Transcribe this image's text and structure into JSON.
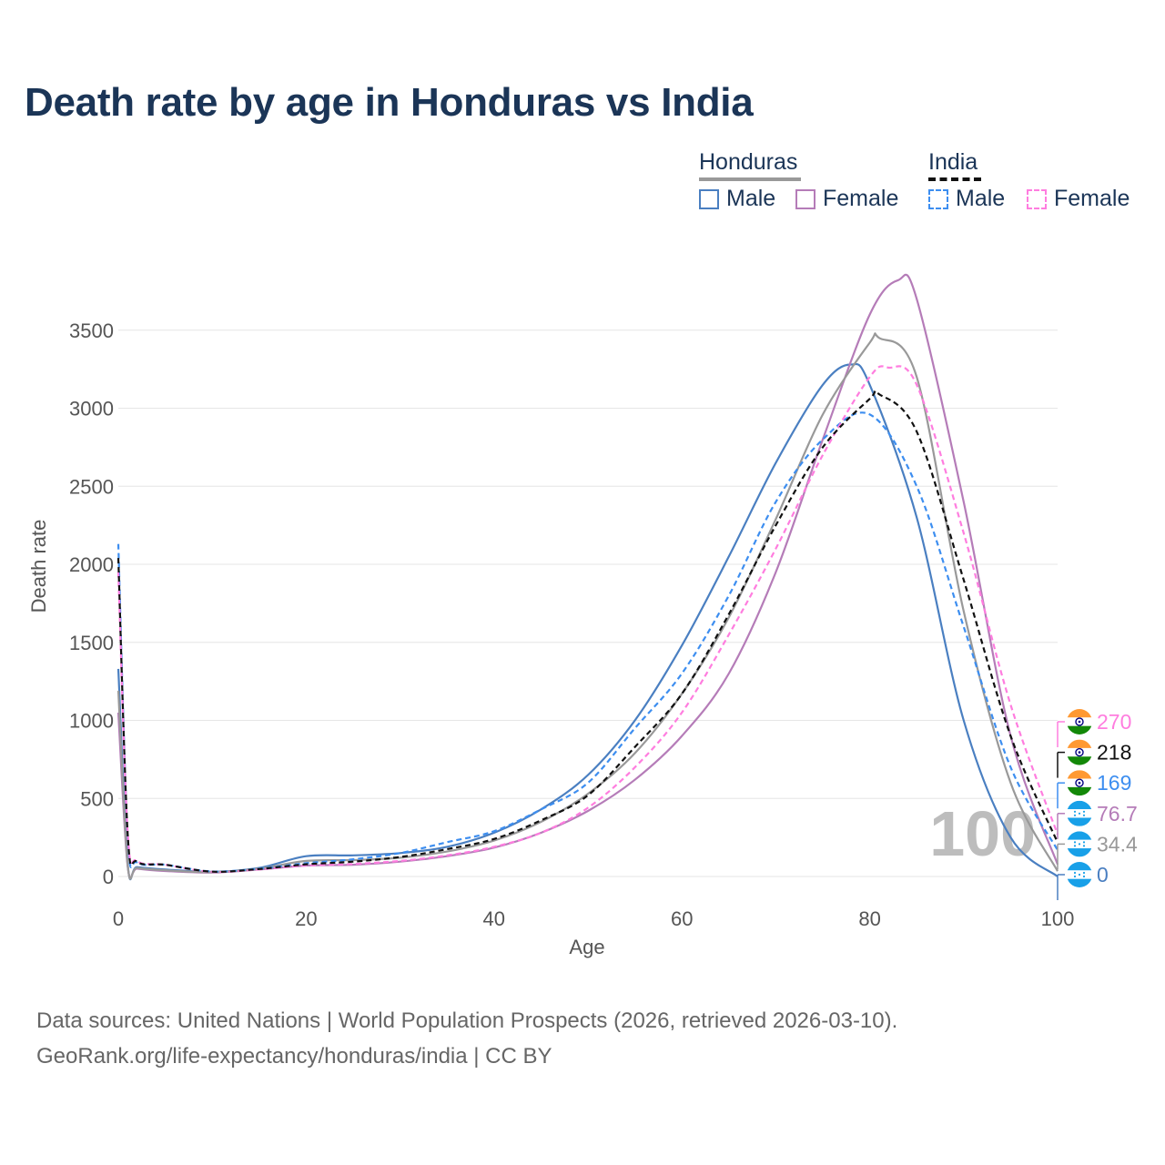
{
  "title": "Death rate by age in Honduras vs India",
  "legend": {
    "groups": [
      {
        "name": "Honduras",
        "items": [
          "Male",
          "Female"
        ],
        "style": "solid"
      },
      {
        "name": "India",
        "items": [
          "Male",
          "Female"
        ],
        "style": "dashed"
      }
    ]
  },
  "colors": {
    "male": "#4a7fc1",
    "female": "#b57cb8",
    "honduras_total": "#999999",
    "india_total": "#111111",
    "india_male": "#3d8ef0",
    "india_female": "#ff7ddf",
    "grid": "#e6e6e6",
    "title": "#1b3557"
  },
  "watermark": "100",
  "source": {
    "line1": "Data sources: United Nations | World Population Prospects (2026, retrieved 2026-03-10).",
    "line2": "GeoRank.org/life-expectancy/honduras/india | CC BY"
  },
  "chart_data": {
    "type": "line",
    "xlabel": "Age",
    "ylabel": "Death rate",
    "xlim": [
      0,
      100
    ],
    "ylim": [
      0,
      3800
    ],
    "xticks": [
      "0",
      "20",
      "40",
      "60",
      "80",
      "100"
    ],
    "yticks": [
      "0",
      "500",
      "1000",
      "1500",
      "2000",
      "2500",
      "3000",
      "3500"
    ],
    "series": [
      {
        "name": "Honduras Male",
        "country": "Honduras",
        "sex": "Male",
        "style": "solid",
        "color": "#4a7fc1",
        "x": [
          0,
          1,
          2,
          5,
          10,
          15,
          20,
          25,
          30,
          35,
          40,
          45,
          50,
          55,
          60,
          65,
          70,
          75,
          78,
          80,
          85,
          90,
          95,
          100
        ],
        "y": [
          1330,
          80,
          60,
          45,
          30,
          55,
          130,
          135,
          150,
          190,
          280,
          430,
          650,
          1000,
          1480,
          2050,
          2650,
          3150,
          3280,
          3150,
          2300,
          1000,
          250,
          0
        ]
      },
      {
        "name": "Honduras Female",
        "country": "Honduras",
        "sex": "Female",
        "style": "solid",
        "color": "#b57cb8",
        "x": [
          0,
          1,
          2,
          5,
          10,
          15,
          20,
          25,
          30,
          35,
          40,
          45,
          50,
          55,
          60,
          65,
          70,
          75,
          80,
          83,
          85,
          90,
          95,
          100
        ],
        "y": [
          1050,
          65,
          50,
          35,
          25,
          45,
          70,
          75,
          95,
          130,
          185,
          280,
          420,
          620,
          900,
          1300,
          1950,
          2800,
          3600,
          3820,
          3700,
          2400,
          900,
          77
        ]
      },
      {
        "name": "Honduras Total",
        "country": "Honduras",
        "sex": "Total",
        "style": "solid",
        "color": "#999999",
        "x": [
          0,
          1,
          2,
          5,
          10,
          15,
          20,
          25,
          30,
          35,
          40,
          45,
          50,
          55,
          60,
          65,
          70,
          75,
          80,
          81,
          85,
          90,
          95,
          100
        ],
        "y": [
          1190,
          72,
          55,
          40,
          28,
          50,
          100,
          105,
          120,
          160,
          230,
          350,
          530,
          790,
          1170,
          1660,
          2290,
          2960,
          3420,
          3450,
          3200,
          1700,
          600,
          34
        ]
      },
      {
        "name": "India Male",
        "country": "India",
        "sex": "Male",
        "style": "dashed",
        "color": "#3d8ef0",
        "x": [
          0,
          1,
          2,
          5,
          10,
          15,
          20,
          25,
          30,
          35,
          40,
          45,
          50,
          55,
          60,
          65,
          70,
          75,
          80,
          85,
          90,
          95,
          100
        ],
        "y": [
          2130,
          260,
          90,
          75,
          32,
          50,
          85,
          110,
          150,
          220,
          290,
          430,
          600,
          950,
          1300,
          1800,
          2400,
          2800,
          2960,
          2500,
          1600,
          700,
          169
        ]
      },
      {
        "name": "India Female",
        "country": "India",
        "sex": "Female",
        "style": "dashed",
        "color": "#ff7ddf",
        "x": [
          0,
          1,
          2,
          5,
          10,
          15,
          20,
          25,
          30,
          35,
          40,
          45,
          50,
          55,
          60,
          65,
          70,
          75,
          80,
          82,
          85,
          90,
          95,
          100
        ],
        "y": [
          1950,
          280,
          100,
          75,
          30,
          45,
          70,
          80,
          100,
          135,
          190,
          280,
          440,
          700,
          1050,
          1550,
          2100,
          2700,
          3200,
          3260,
          3150,
          2200,
          1100,
          270
        ]
      },
      {
        "name": "India Total",
        "country": "India",
        "sex": "Total",
        "style": "dashed",
        "color": "#111111",
        "x": [
          0,
          1,
          2,
          5,
          10,
          15,
          20,
          25,
          30,
          35,
          40,
          45,
          50,
          55,
          60,
          65,
          70,
          75,
          80,
          81,
          85,
          90,
          95,
          100
        ],
        "y": [
          2040,
          270,
          95,
          75,
          31,
          48,
          78,
          95,
          125,
          175,
          240,
          360,
          520,
          830,
          1170,
          1680,
          2250,
          2750,
          3060,
          3090,
          2850,
          1900,
          900,
          218
        ]
      }
    ],
    "end_labels": [
      {
        "text": "270",
        "color": "#ff7ddf",
        "flag": "india"
      },
      {
        "text": "218",
        "color": "#111111",
        "flag": "india"
      },
      {
        "text": "169",
        "color": "#3d8ef0",
        "flag": "india"
      },
      {
        "text": "76.7",
        "color": "#b57cb8",
        "flag": "honduras"
      },
      {
        "text": "34.4",
        "color": "#999999",
        "flag": "honduras"
      },
      {
        "text": "0",
        "color": "#4a7fc1",
        "flag": "honduras"
      }
    ]
  }
}
